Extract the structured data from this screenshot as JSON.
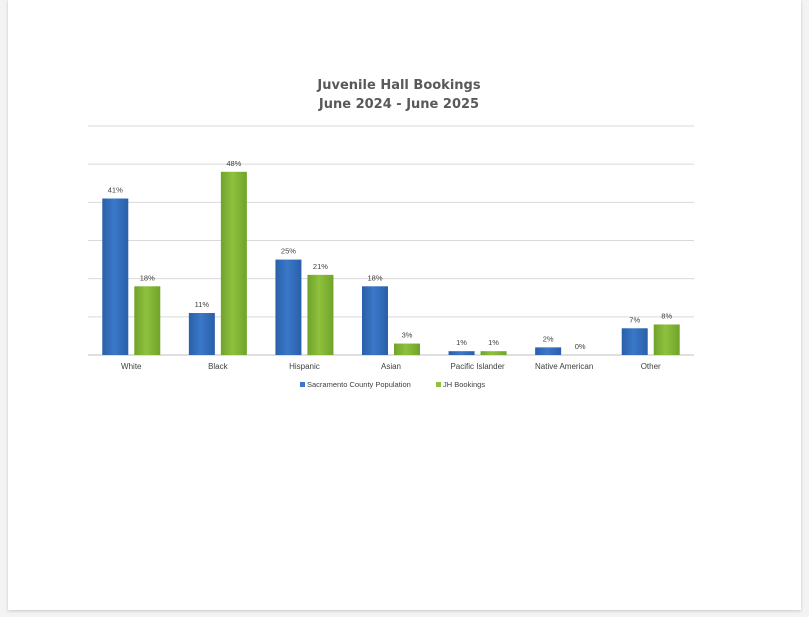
{
  "colors": {
    "population": "#3a78c9",
    "population_dark": "#2a5fa8",
    "bookings": "#8fc13e",
    "bookings_dark": "#6fa32a",
    "grid": "#d9d9d9"
  },
  "chart_data": {
    "type": "bar",
    "title_line1": "Juvenile Hall Bookings",
    "title_line2": "June 2024 - June 2025",
    "categories": [
      "White",
      "Black",
      "Hispanic",
      "Asian",
      "Pacific Islander",
      "Native American",
      "Other"
    ],
    "series": [
      {
        "name": "Sacramento County Population",
        "values": [
          41,
          11,
          25,
          18,
          1,
          2,
          7
        ],
        "labels": [
          "41%",
          "11%",
          "25%",
          "18%",
          "1%",
          "2%",
          "7%"
        ]
      },
      {
        "name": "JH Bookings",
        "values": [
          18,
          48,
          21,
          3,
          1,
          0,
          8
        ],
        "labels": [
          "18%",
          "48%",
          "21%",
          "3%",
          "1%",
          "0%",
          "8%"
        ]
      }
    ],
    "ylim": [
      0,
      60
    ],
    "grid": true,
    "legend": "bottom"
  }
}
